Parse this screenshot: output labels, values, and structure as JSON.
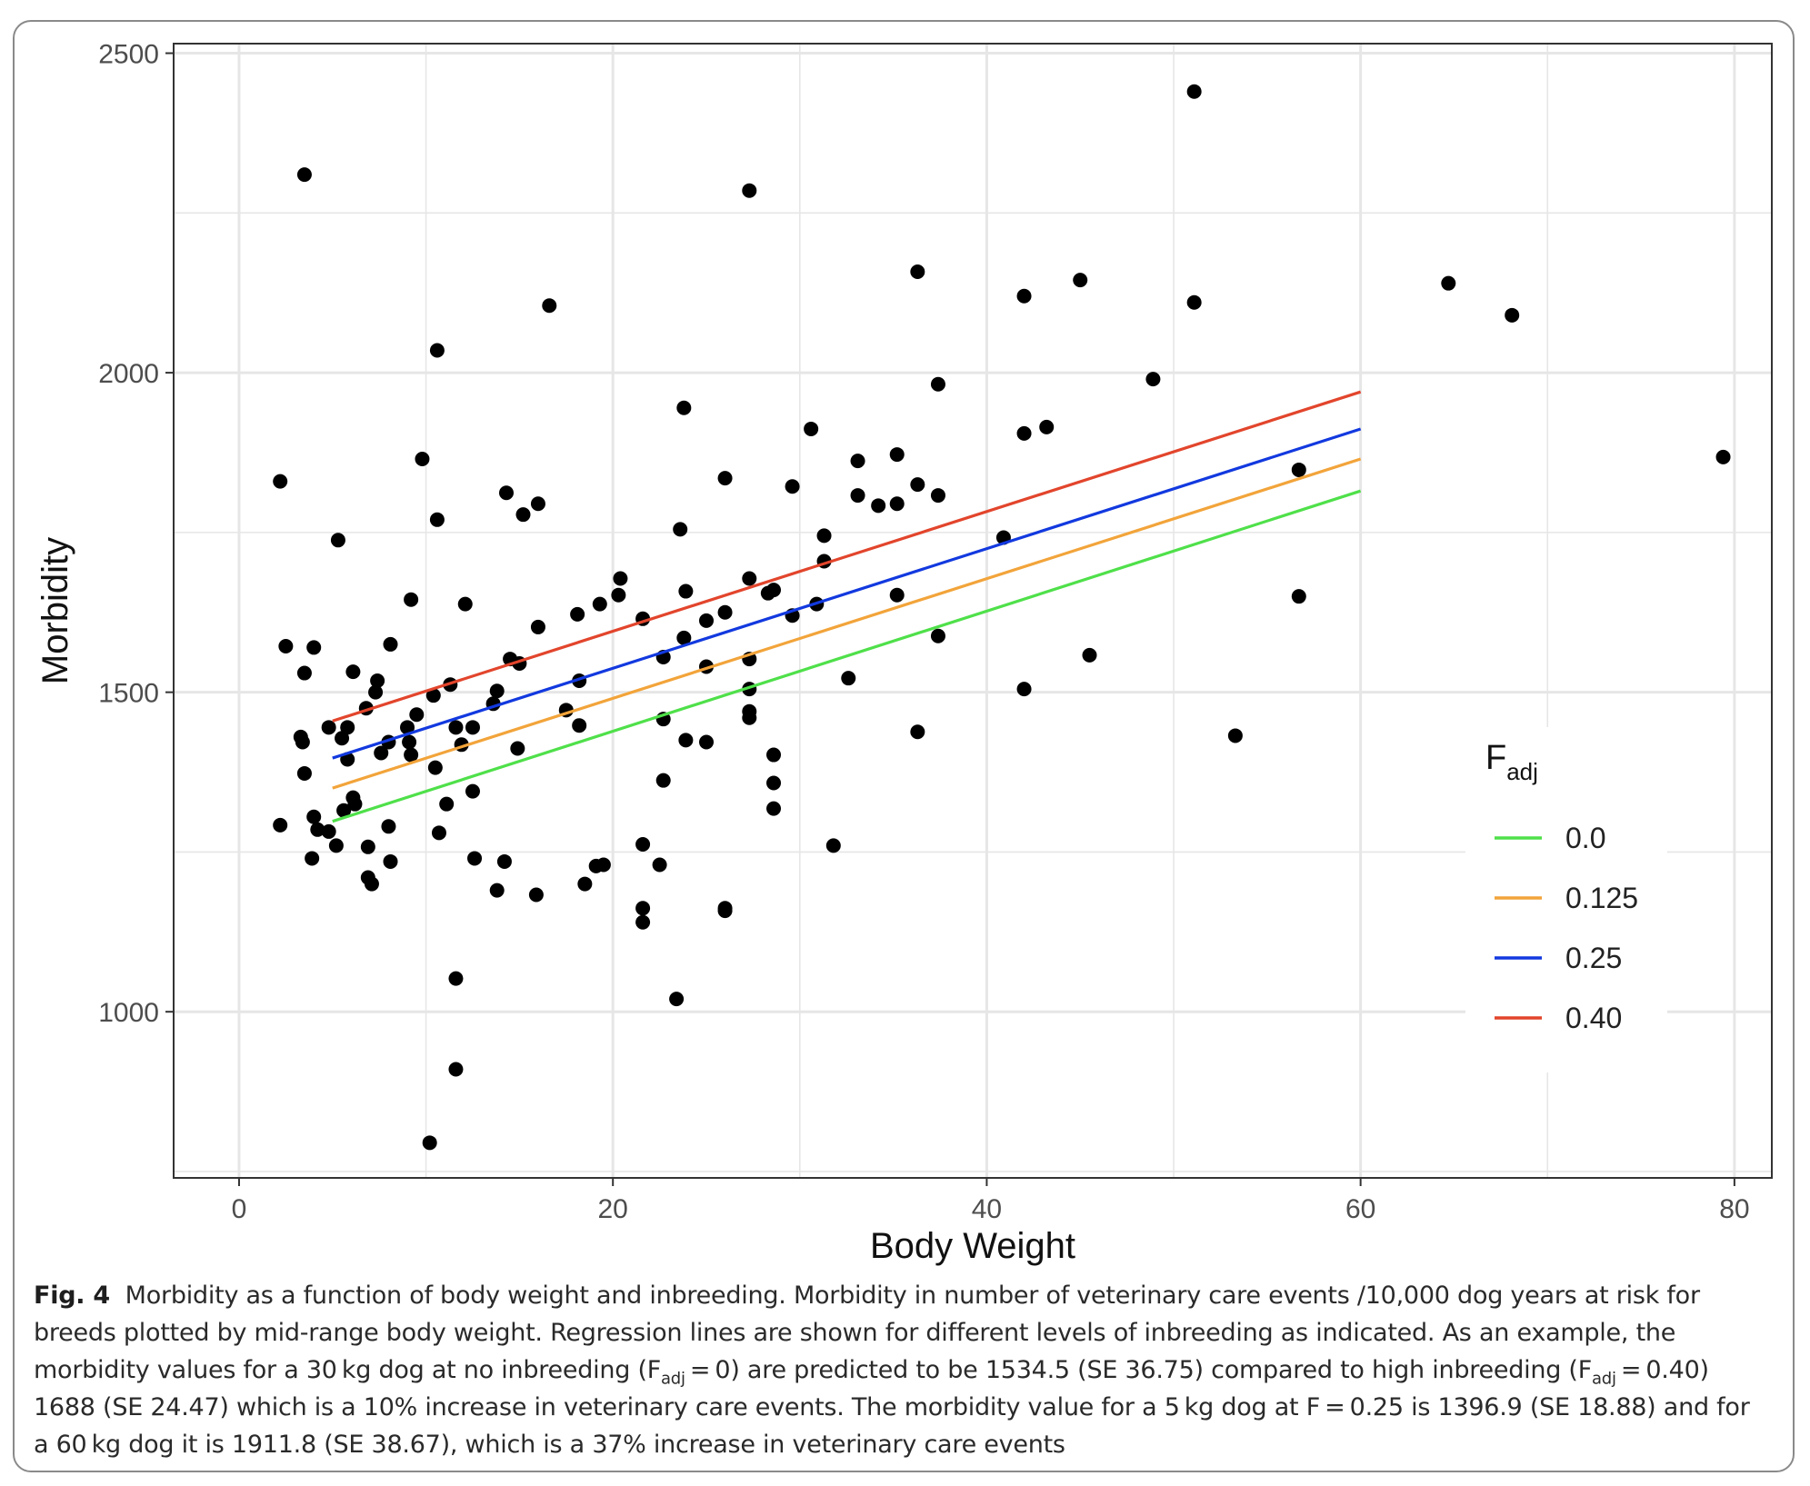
{
  "chart_data": {
    "type": "scatter",
    "xlabel": "Body Weight",
    "ylabel": "Morbidity",
    "xlim": [
      -3.5,
      82
    ],
    "ylim": [
      740,
      2515
    ],
    "xticks": [
      0,
      20,
      40,
      60,
      80
    ],
    "yticks": [
      1000,
      1500,
      2000,
      2500
    ],
    "grid": true,
    "legend": {
      "title_main": "F",
      "title_sub": "adj",
      "placement": "right-inside"
    },
    "points": [
      [
        2.2,
        1830
      ],
      [
        2.5,
        1572
      ],
      [
        3.3,
        1430
      ],
      [
        3.4,
        1422
      ],
      [
        3.5,
        1373
      ],
      [
        3.5,
        1530
      ],
      [
        3.5,
        2310
      ],
      [
        3.9,
        1240
      ],
      [
        4.0,
        1570
      ],
      [
        4.0,
        1305
      ],
      [
        4.2,
        1285
      ],
      [
        2.2,
        1292
      ],
      [
        4.8,
        1282
      ],
      [
        4.8,
        1445
      ],
      [
        5.2,
        1260
      ],
      [
        5.3,
        1738
      ],
      [
        5.5,
        1428
      ],
      [
        5.6,
        1315
      ],
      [
        5.8,
        1395
      ],
      [
        5.8,
        1445
      ],
      [
        6.1,
        1335
      ],
      [
        6.2,
        1325
      ],
      [
        6.1,
        1532
      ],
      [
        6.8,
        1475
      ],
      [
        6.9,
        1258
      ],
      [
        6.9,
        1210
      ],
      [
        7.1,
        1200
      ],
      [
        7.3,
        1500
      ],
      [
        7.4,
        1518
      ],
      [
        7.6,
        1405
      ],
      [
        8.0,
        1422
      ],
      [
        8.0,
        1290
      ],
      [
        8.1,
        1235
      ],
      [
        8.1,
        1575
      ],
      [
        9.0,
        1445
      ],
      [
        9.1,
        1422
      ],
      [
        9.2,
        1402
      ],
      [
        9.2,
        1645
      ],
      [
        9.5,
        1465
      ],
      [
        9.8,
        1865
      ],
      [
        10.2,
        795
      ],
      [
        10.4,
        1495
      ],
      [
        10.5,
        1382
      ],
      [
        10.6,
        1770
      ],
      [
        10.6,
        2035
      ],
      [
        10.7,
        1280
      ],
      [
        11.1,
        1325
      ],
      [
        11.3,
        1512
      ],
      [
        11.6,
        1445
      ],
      [
        11.6,
        1052
      ],
      [
        11.6,
        910
      ],
      [
        11.9,
        1418
      ],
      [
        12.1,
        1638
      ],
      [
        12.5,
        1345
      ],
      [
        12.5,
        1445
      ],
      [
        12.6,
        1240
      ],
      [
        13.6,
        1482
      ],
      [
        13.8,
        1502
      ],
      [
        13.8,
        1190
      ],
      [
        14.2,
        1235
      ],
      [
        14.3,
        1812
      ],
      [
        14.5,
        1552
      ],
      [
        14.9,
        1412
      ],
      [
        15.0,
        1545
      ],
      [
        15.2,
        1778
      ],
      [
        15.9,
        1183
      ],
      [
        16.0,
        1795
      ],
      [
        16.0,
        1602
      ],
      [
        16.6,
        2105
      ],
      [
        17.5,
        1472
      ],
      [
        18.1,
        1622
      ],
      [
        18.2,
        1518
      ],
      [
        18.2,
        1448
      ],
      [
        18.5,
        1200
      ],
      [
        19.1,
        1228
      ],
      [
        19.3,
        1638
      ],
      [
        19.5,
        1230
      ],
      [
        20.3,
        1652
      ],
      [
        20.4,
        1678
      ],
      [
        21.6,
        1262
      ],
      [
        21.6,
        1615
      ],
      [
        21.6,
        1162
      ],
      [
        21.6,
        1140
      ],
      [
        22.5,
        1230
      ],
      [
        22.7,
        1555
      ],
      [
        22.7,
        1458
      ],
      [
        22.7,
        1362
      ],
      [
        23.4,
        1020
      ],
      [
        23.6,
        1755
      ],
      [
        23.8,
        1945
      ],
      [
        23.8,
        1585
      ],
      [
        23.9,
        1425
      ],
      [
        23.9,
        1658
      ],
      [
        25.0,
        1540
      ],
      [
        25.0,
        1612
      ],
      [
        25.0,
        1422
      ],
      [
        26.0,
        1835
      ],
      [
        26.0,
        1625
      ],
      [
        26.0,
        1162
      ],
      [
        26.0,
        1158
      ],
      [
        27.3,
        1678
      ],
      [
        27.3,
        1552
      ],
      [
        27.3,
        1505
      ],
      [
        27.3,
        1470
      ],
      [
        27.3,
        1460
      ],
      [
        27.3,
        2285
      ],
      [
        28.3,
        1655
      ],
      [
        28.6,
        1660
      ],
      [
        28.6,
        1402
      ],
      [
        28.6,
        1358
      ],
      [
        28.6,
        1318
      ],
      [
        29.6,
        1822
      ],
      [
        29.6,
        1620
      ],
      [
        30.6,
        1912
      ],
      [
        30.9,
        1638
      ],
      [
        31.3,
        1745
      ],
      [
        31.3,
        1705
      ],
      [
        31.8,
        1260
      ],
      [
        32.6,
        1522
      ],
      [
        33.1,
        1808
      ],
      [
        33.1,
        1862
      ],
      [
        34.2,
        1792
      ],
      [
        35.2,
        1872
      ],
      [
        35.2,
        1795
      ],
      [
        35.2,
        1652
      ],
      [
        36.3,
        1825
      ],
      [
        36.3,
        2158
      ],
      [
        36.3,
        1438
      ],
      [
        37.4,
        1982
      ],
      [
        37.4,
        1808
      ],
      [
        37.4,
        1588
      ],
      [
        40.9,
        1742
      ],
      [
        42.0,
        2120
      ],
      [
        42.0,
        1905
      ],
      [
        42.0,
        1505
      ],
      [
        43.2,
        1915
      ],
      [
        45.0,
        2145
      ],
      [
        45.5,
        1558
      ],
      [
        48.9,
        1990
      ],
      [
        51.1,
        2440
      ],
      [
        51.1,
        2110
      ],
      [
        53.3,
        1432
      ],
      [
        56.7,
        1848
      ],
      [
        56.7,
        1650
      ],
      [
        64.7,
        2140
      ],
      [
        68.1,
        2090
      ],
      [
        79.4,
        1868
      ]
    ],
    "series": [
      {
        "name": "0.0",
        "color": "#4fe04a",
        "x": [
          5,
          60
        ],
        "y": [
          1298,
          1815
        ]
      },
      {
        "name": "0.125",
        "color": "#f2a43a",
        "x": [
          5,
          60
        ],
        "y": [
          1350,
          1865
        ]
      },
      {
        "name": "0.25",
        "color": "#1239df",
        "x": [
          5,
          60
        ],
        "y": [
          1397,
          1912
        ]
      },
      {
        "name": "0.40",
        "color": "#e2452c",
        "x": [
          5,
          60
        ],
        "y": [
          1455,
          1970
        ]
      }
    ],
    "point_color": "#000000",
    "grid_color": "#e6e6e6"
  },
  "caption": {
    "label": "Fig. 4",
    "p1": "Morbidity as a function of body weight and inbreeding. Morbidity in number of veterinary care events /10,000 dog years at risk for breeds plotted by mid-range body weight. Regression lines are shown for different levels of inbreeding as indicated. As an example, the morbidity values for a 30 kg dog at no inbreeding (F",
    "sub1": "adj",
    "p2": " = 0) are predicted to be 1534.5 (SE 36.75) compared to high inbreeding (F",
    "sub2": "adj",
    "p3": " = 0.40) 1688 (SE 24.47) which is a 10% increase in veterinary care events. The morbidity value for a 5 kg dog at F = 0.25 is 1396.9 (SE 18.88) and for a 60 kg dog it is 1911.8 (SE 38.67), which is a 37% increase in veterinary care events"
  }
}
